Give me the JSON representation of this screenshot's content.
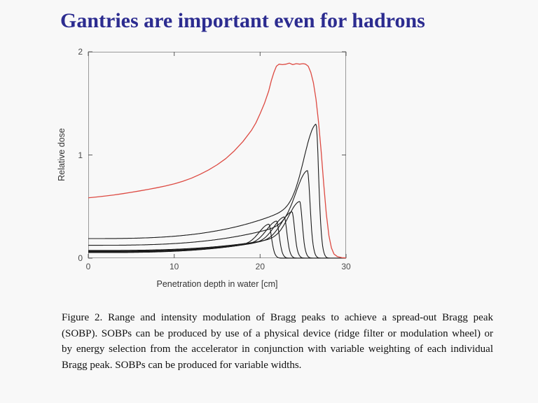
{
  "slide": {
    "title": "Gantries are important even for hadrons",
    "title_color": "#2c2c90",
    "background": "#f8f8f8"
  },
  "chart_data": {
    "type": "line",
    "title": "",
    "xlabel": "Penetration depth in water [cm]",
    "ylabel": "Relative dose",
    "xlim": [
      0,
      30
    ],
    "ylim": [
      0,
      2
    ],
    "xticks": [
      0,
      10,
      20,
      30
    ],
    "yticks": [
      0,
      1,
      2
    ],
    "grid": false,
    "legend": "none",
    "frame_color": "#9a9a9a",
    "tick_color": "#5a5a5a",
    "series": [
      {
        "name": "individual Bragg peaks (range and intensity modulated)",
        "kind": "bragg-family",
        "color": "#1b1b1b",
        "peaks": [
          {
            "entrance_dose": 0.054,
            "peak_depth_cm": 21.0,
            "peak_dose": 0.33
          },
          {
            "entrance_dose": 0.058,
            "peak_depth_cm": 21.9,
            "peak_dose": 0.36
          },
          {
            "entrance_dose": 0.062,
            "peak_depth_cm": 22.8,
            "peak_dose": 0.4
          },
          {
            "entrance_dose": 0.068,
            "peak_depth_cm": 23.7,
            "peak_dose": 0.45
          },
          {
            "entrance_dose": 0.075,
            "peak_depth_cm": 24.6,
            "peak_dose": 0.55
          },
          {
            "entrance_dose": 0.125,
            "peak_depth_cm": 25.5,
            "peak_dose": 0.85
          },
          {
            "entrance_dose": 0.19,
            "peak_depth_cm": 26.5,
            "peak_dose": 1.3
          }
        ]
      },
      {
        "name": "spread-out Bragg peak (SOBP)",
        "kind": "polyline",
        "color": "#dd4a42",
        "points": [
          [
            0,
            0.585
          ],
          [
            1,
            0.593
          ],
          [
            2,
            0.603
          ],
          [
            3,
            0.613
          ],
          [
            4,
            0.625
          ],
          [
            5,
            0.638
          ],
          [
            6,
            0.652
          ],
          [
            7,
            0.667
          ],
          [
            8,
            0.683
          ],
          [
            9,
            0.7
          ],
          [
            10,
            0.72
          ],
          [
            11,
            0.745
          ],
          [
            12,
            0.775
          ],
          [
            13,
            0.812
          ],
          [
            14,
            0.855
          ],
          [
            15,
            0.905
          ],
          [
            16,
            0.965
          ],
          [
            17,
            1.04
          ],
          [
            18,
            1.13
          ],
          [
            19,
            1.24
          ],
          [
            19.5,
            1.31
          ],
          [
            20,
            1.4
          ],
          [
            20.5,
            1.5
          ],
          [
            21,
            1.62
          ],
          [
            21.3,
            1.72
          ],
          [
            21.6,
            1.8
          ],
          [
            21.9,
            1.86
          ],
          [
            22.2,
            1.88
          ],
          [
            22.6,
            1.875
          ],
          [
            23,
            1.88
          ],
          [
            23.4,
            1.89
          ],
          [
            23.8,
            1.875
          ],
          [
            24.2,
            1.885
          ],
          [
            24.6,
            1.88
          ],
          [
            25,
            1.885
          ],
          [
            25.3,
            1.88
          ],
          [
            25.6,
            1.86
          ],
          [
            25.9,
            1.8
          ],
          [
            26.2,
            1.7
          ],
          [
            26.5,
            1.54
          ],
          [
            26.8,
            1.32
          ],
          [
            27.1,
            1.04
          ],
          [
            27.4,
            0.72
          ],
          [
            27.7,
            0.43
          ],
          [
            28,
            0.22
          ],
          [
            28.3,
            0.1
          ],
          [
            28.6,
            0.04
          ],
          [
            29,
            0.015
          ],
          [
            29.5,
            0.005
          ],
          [
            30,
            0.003
          ]
        ]
      }
    ]
  },
  "caption": {
    "label": "Figure 2.",
    "lines": [
      "Figure 2.  Range and intensity modulation of Bragg peaks to achieve a spread-out Bragg peak",
      "(SOBP). SOBPs can be produced by use of a physical device (ridge filter or modulation wheel) or",
      "by energy selection from the accelerator in conjunction with variable weighting of each individual",
      "Bragg peak.  SOBPs can be produced for variable widths."
    ]
  }
}
